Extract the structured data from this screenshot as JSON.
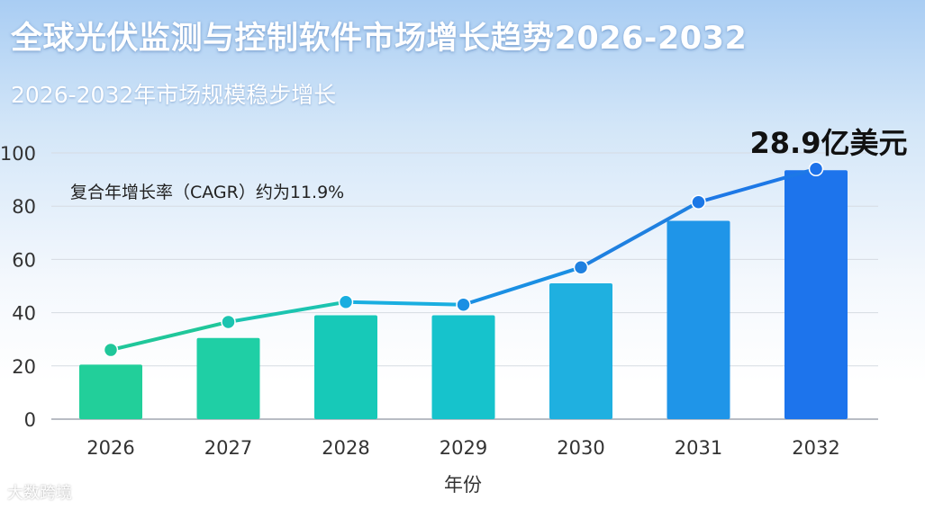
{
  "title": "全球光伏监测与控制软件市场增长趋势2026-2032",
  "subtitle": "2026-2032年市场规模稳步增长",
  "watermark": "大数跨境",
  "chart_data": {
    "type": "bar",
    "categories": [
      "2026",
      "2027",
      "2028",
      "2029",
      "2030",
      "2031",
      "2032"
    ],
    "series": [
      {
        "type": "bar",
        "values": [
          20.5,
          30.5,
          39,
          39,
          51,
          74.5,
          93.5
        ]
      },
      {
        "type": "line",
        "values": [
          26,
          36.5,
          44,
          43,
          57,
          81.5,
          94
        ]
      }
    ],
    "xlabel": "年份",
    "ylabel": "",
    "ylim": [
      0,
      100
    ],
    "yticks": [
      0,
      20,
      40,
      60,
      80,
      100
    ],
    "grid": true,
    "annotations": {
      "cagr": "复合年增长率（CAGR）约为11.9%",
      "final_value": "28.9亿美元"
    },
    "bar_colors": [
      "#22cf9a",
      "#1fcfa5",
      "#17c9b8",
      "#16c3cc",
      "#1fb0e0",
      "#1f95e8",
      "#1d74ec"
    ],
    "line_colors": [
      "#20c79a",
      "#1cc4b0",
      "#19aee0",
      "#1a8fe3",
      "#1f80e0",
      "#1d78e6",
      "#1d72ea"
    ]
  }
}
